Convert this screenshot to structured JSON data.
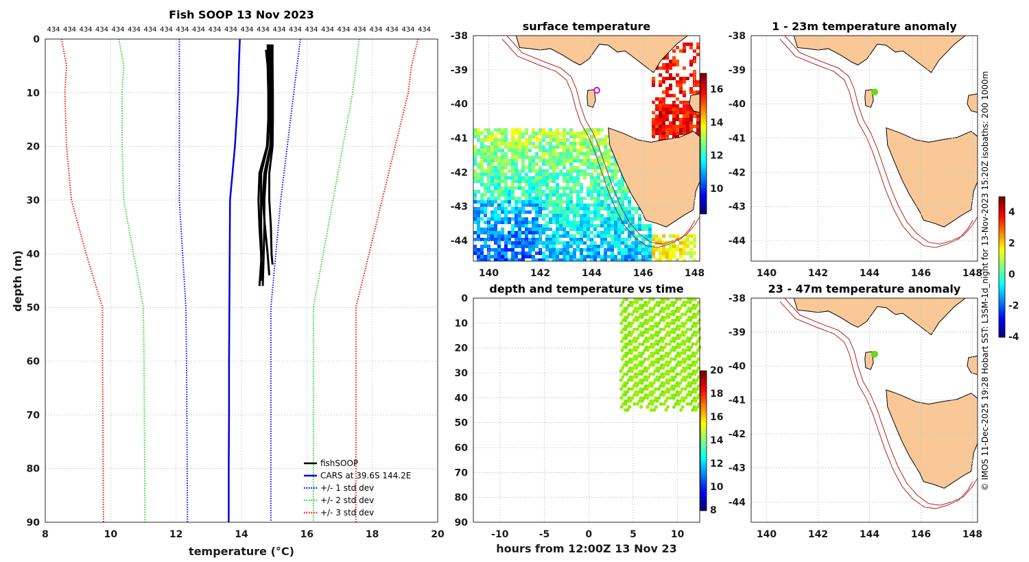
{
  "colors": {
    "fishsoop": "#000000",
    "cars": "#0000dd",
    "std1": "#0000ff",
    "std2": "#22dd22",
    "std3": "#ee1100",
    "land": "#f9c896",
    "isobath": "#b22222",
    "point_green": "#66dd11",
    "marker_magenta": "#e000e0"
  },
  "chart_data": [
    {
      "type": "line",
      "title": "Fish SOOP 13 Nov 2023",
      "xlabel": "temperature (°C)",
      "ylabel": "depth (m)",
      "xlim": [
        8,
        20
      ],
      "ylim": [
        90,
        0
      ],
      "xticks": [
        "8",
        "10",
        "12",
        "14",
        "16",
        "18",
        "20"
      ],
      "yticks": [
        "0",
        "10",
        "20",
        "30",
        "40",
        "50",
        "60",
        "70",
        "80",
        "90"
      ],
      "top_labels": [
        "434",
        "434",
        "434",
        "434",
        "434",
        "434",
        "434",
        "434",
        "434",
        "434",
        "434",
        "434",
        "434",
        "434",
        "434",
        "434",
        "434",
        "434",
        "434",
        "434",
        "434",
        "434",
        "434",
        "434"
      ],
      "legend": [
        "fishSOOP",
        "CARS at 39.6S 144.2E",
        "+/- 1 std dev",
        "+/- 2 std dev",
        "+/- 3 std dev"
      ],
      "depths": [
        0,
        5,
        10,
        20,
        30,
        40,
        50,
        60,
        70,
        80,
        90
      ],
      "series": [
        {
          "name": "CARS at 39.6S 144.2E",
          "style": "solid",
          "temps": [
            13.95,
            13.92,
            13.9,
            13.8,
            13.65,
            13.64,
            13.63,
            13.62,
            13.62,
            13.61,
            13.61
          ]
        },
        {
          "name": "+/- 1 std dev low",
          "style": "dotted",
          "temps": [
            12.1,
            12.1,
            12.1,
            12.1,
            12.1,
            12.2,
            12.3,
            12.32,
            12.33,
            12.34,
            12.35
          ]
        },
        {
          "name": "+/- 1 std dev high",
          "style": "dotted",
          "temps": [
            15.8,
            15.7,
            15.6,
            15.4,
            15.2,
            15.05,
            14.9,
            14.9,
            14.9,
            14.9,
            14.9
          ]
        },
        {
          "name": "+/- 2 std dev low",
          "style": "dotted",
          "temps": [
            10.25,
            10.4,
            10.35,
            10.35,
            10.4,
            10.7,
            11.0,
            11.02,
            11.03,
            11.04,
            11.05
          ]
        },
        {
          "name": "+/- 2 std dev high",
          "style": "dotted",
          "temps": [
            17.6,
            17.5,
            17.4,
            17.1,
            16.8,
            16.5,
            16.2,
            16.2,
            16.2,
            16.2,
            16.2
          ]
        },
        {
          "name": "+/- 3 std dev low",
          "style": "dotted",
          "temps": [
            8.5,
            8.65,
            8.6,
            8.65,
            8.8,
            9.25,
            9.75,
            9.75,
            9.76,
            9.77,
            9.78
          ]
        },
        {
          "name": "+/- 3 std dev high",
          "style": "dotted",
          "temps": [
            19.4,
            19.2,
            19.1,
            18.7,
            18.3,
            17.9,
            17.5,
            17.5,
            17.5,
            17.5,
            17.5
          ]
        }
      ],
      "fishsoop_profiles": [
        {
          "depths": [
            1,
            5,
            10,
            15,
            20,
            25,
            30,
            35,
            40,
            46
          ],
          "temps": [
            14.8,
            14.82,
            14.85,
            14.85,
            14.8,
            14.6,
            14.6,
            14.6,
            14.62,
            14.55
          ]
        },
        {
          "depths": [
            1,
            5,
            10,
            15,
            20,
            25,
            30,
            35,
            40,
            46
          ],
          "temps": [
            14.9,
            14.92,
            14.93,
            14.93,
            14.9,
            14.75,
            14.7,
            14.7,
            14.68,
            14.65
          ]
        },
        {
          "depths": [
            1,
            5,
            10,
            15,
            20,
            25,
            30,
            35,
            40,
            42
          ],
          "temps": [
            14.95,
            14.95,
            14.96,
            14.96,
            14.95,
            14.85,
            14.85,
            14.9,
            14.92,
            14.95
          ]
        },
        {
          "depths": [
            2,
            5,
            10,
            15,
            20,
            25,
            30,
            35,
            40,
            45
          ],
          "temps": [
            14.75,
            14.8,
            14.82,
            14.82,
            14.78,
            14.55,
            14.52,
            14.55,
            14.6,
            14.62
          ]
        },
        {
          "depths": [
            1,
            5,
            10,
            15,
            20,
            25,
            30,
            35,
            40,
            44
          ],
          "temps": [
            14.85,
            14.88,
            14.9,
            14.9,
            14.88,
            14.7,
            14.65,
            14.72,
            14.8,
            14.85
          ]
        }
      ]
    },
    {
      "type": "heatmap",
      "title": "surface temperature",
      "xlim": [
        139.4,
        148.2
      ],
      "ylim": [
        -44.6,
        -38
      ],
      "xticks": [
        "140",
        "142",
        "144",
        "146",
        "148"
      ],
      "yticks": [
        "-38",
        "-39",
        "-40",
        "-41",
        "-42",
        "-43",
        "-44"
      ],
      "colorbar": {
        "min": 8.5,
        "max": 17,
        "ticks": [
          "10",
          "12",
          "14",
          "16"
        ]
      },
      "marker": {
        "lon": 144.2,
        "lat": -39.6
      }
    },
    {
      "type": "scatter",
      "title": "depth and temperature vs time",
      "xlabel": "hours from 12:00Z 13 Nov 23",
      "xlim": [
        -13,
        12.5
      ],
      "ylim": [
        90,
        0
      ],
      "xticks": [
        "-10",
        "-5",
        "0",
        "5",
        "10"
      ],
      "yticks": [
        "0",
        "10",
        "20",
        "30",
        "40",
        "50",
        "60",
        "70",
        "80",
        "90"
      ],
      "colorbar": {
        "min": 8,
        "max": 20,
        "ticks": [
          "8",
          "10",
          "12",
          "14",
          "16",
          "18",
          "20"
        ]
      },
      "profiles": [
        {
          "hour": 3.6,
          "max_depth": 46
        },
        {
          "hour": 4.1,
          "max_depth": 45
        },
        {
          "hour": 4.7,
          "max_depth": 43
        },
        {
          "hour": 5.3,
          "max_depth": 44
        },
        {
          "hour": 5.9,
          "max_depth": 42
        },
        {
          "hour": 6.5,
          "max_depth": 45
        },
        {
          "hour": 7.1,
          "max_depth": 46
        },
        {
          "hour": 7.7,
          "max_depth": 43
        },
        {
          "hour": 8.3,
          "max_depth": 45
        },
        {
          "hour": 8.9,
          "max_depth": 41
        },
        {
          "hour": 9.5,
          "max_depth": 44
        },
        {
          "hour": 10.1,
          "max_depth": 46
        },
        {
          "hour": 10.7,
          "max_depth": 43
        },
        {
          "hour": 11.3,
          "max_depth": 45
        },
        {
          "hour": 11.9,
          "max_depth": 46
        }
      ]
    },
    {
      "type": "heatmap",
      "title": "1 - 23m temperature anomaly",
      "xlim": [
        139.4,
        148.2
      ],
      "ylim": [
        -44.6,
        -38
      ],
      "xticks": [
        "140",
        "142",
        "144",
        "146",
        "148"
      ],
      "yticks": [
        "-38",
        "-39",
        "-40",
        "-41",
        "-42",
        "-43",
        "-44"
      ],
      "point": {
        "lon": 144.2,
        "lat": -39.65
      }
    },
    {
      "type": "heatmap",
      "title": "23 - 47m temperature anomaly",
      "xlim": [
        139.4,
        148.2
      ],
      "ylim": [
        -44.6,
        -38
      ],
      "xticks": [
        "140",
        "142",
        "144",
        "146",
        "148"
      ],
      "yticks": [
        "-38",
        "-39",
        "-40",
        "-41",
        "-42",
        "-43",
        "-44"
      ],
      "point": {
        "lon": 144.2,
        "lat": -39.65
      },
      "colorbar": {
        "min": -4,
        "max": 5,
        "ticks": [
          "-4",
          "-2",
          "0",
          "2",
          "4"
        ]
      }
    }
  ],
  "side_caption": "© IMOS 11-Dec-2025 19:28 Hobart SST: L3SM-1d_night for 13-Nov-2023 15:20Z isobaths: 200  1000m"
}
